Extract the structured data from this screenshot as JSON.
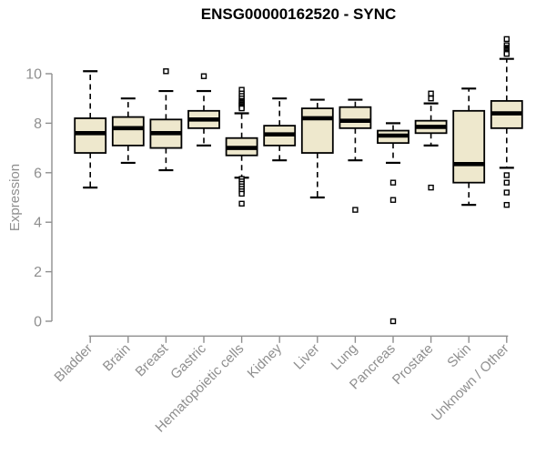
{
  "chart_data": {
    "type": "boxplot",
    "title": "ENSG00000162520 - SYNC",
    "ylabel": "Expression",
    "xlabel": "",
    "yticks": [
      0,
      2,
      4,
      6,
      8,
      10
    ],
    "ytick_range": [
      0,
      10
    ],
    "ylim": [
      -0.2,
      11.6
    ],
    "grid": "off",
    "legend": "none",
    "categories": [
      "Bladder",
      "Brain",
      "Breast",
      "Gastric",
      "Hematopoietic cells",
      "Kidney",
      "Liver",
      "Lung",
      "Pancreas",
      "Prostate",
      "Skin",
      "Unknown / Other"
    ],
    "boxes": [
      {
        "label": "Bladder",
        "whisker_low": 5.4,
        "q1": 6.8,
        "median": 7.6,
        "q3": 8.2,
        "whisker_high": 10.1,
        "outliers": []
      },
      {
        "label": "Brain",
        "whisker_low": 6.4,
        "q1": 7.1,
        "median": 7.8,
        "q3": 8.25,
        "whisker_high": 9.0,
        "outliers": []
      },
      {
        "label": "Breast",
        "whisker_low": 6.1,
        "q1": 7.0,
        "median": 7.6,
        "q3": 8.15,
        "whisker_high": 9.3,
        "outliers": [
          10.1
        ]
      },
      {
        "label": "Gastric",
        "whisker_low": 7.1,
        "q1": 7.8,
        "median": 8.15,
        "q3": 8.5,
        "whisker_high": 9.3,
        "outliers": [
          9.9
        ]
      },
      {
        "label": "Hematopoietic cells",
        "whisker_low": 5.8,
        "q1": 6.7,
        "median": 7.0,
        "q3": 7.4,
        "whisker_high": 8.4,
        "outliers": [
          9.35,
          9.2,
          9.1,
          9.0,
          8.9,
          8.85,
          8.8,
          8.75,
          8.7,
          8.65,
          8.6,
          5.75,
          5.65,
          5.55,
          5.45,
          5.35,
          5.25,
          5.15,
          4.75
        ]
      },
      {
        "label": "Kidney",
        "whisker_low": 6.5,
        "q1": 7.1,
        "median": 7.55,
        "q3": 7.9,
        "whisker_high": 9.0,
        "outliers": []
      },
      {
        "label": "Liver",
        "whisker_low": 5.0,
        "q1": 6.8,
        "median": 8.2,
        "q3": 8.6,
        "whisker_high": 8.95,
        "outliers": []
      },
      {
        "label": "Lung",
        "whisker_low": 6.5,
        "q1": 7.8,
        "median": 8.1,
        "q3": 8.65,
        "whisker_high": 8.95,
        "outliers": [
          4.5
        ]
      },
      {
        "label": "Pancreas",
        "whisker_low": 6.4,
        "q1": 7.2,
        "median": 7.5,
        "q3": 7.7,
        "whisker_high": 8.0,
        "outliers": [
          5.6,
          4.9,
          0.0
        ]
      },
      {
        "label": "Prostate",
        "whisker_low": 7.1,
        "q1": 7.6,
        "median": 7.85,
        "q3": 8.1,
        "whisker_high": 8.8,
        "outliers": [
          9.2,
          9.0,
          5.4
        ]
      },
      {
        "label": "Skin",
        "whisker_low": 4.7,
        "q1": 5.6,
        "median": 6.35,
        "q3": 8.5,
        "whisker_high": 9.4,
        "outliers": []
      },
      {
        "label": "Unknown / Other",
        "whisker_low": 6.2,
        "q1": 7.8,
        "median": 8.4,
        "q3": 8.9,
        "whisker_high": 10.6,
        "outliers": [
          11.4,
          11.15,
          11.05,
          11.0,
          10.95,
          10.9,
          10.85,
          10.8,
          5.9,
          5.6,
          5.2,
          4.7
        ]
      }
    ],
    "colors": {
      "box_fill": "#EEE8CD",
      "box_border": "#000000",
      "median": "#000000",
      "whisker": "#000000",
      "outlier_stroke": "#000000",
      "outlier_fill": "#ffffff",
      "axis": "#8f8f8f",
      "tick_label": "#8f8f8f",
      "axis_title": "#8f8f8f",
      "title": "#000000",
      "background": "#ffffff"
    }
  }
}
